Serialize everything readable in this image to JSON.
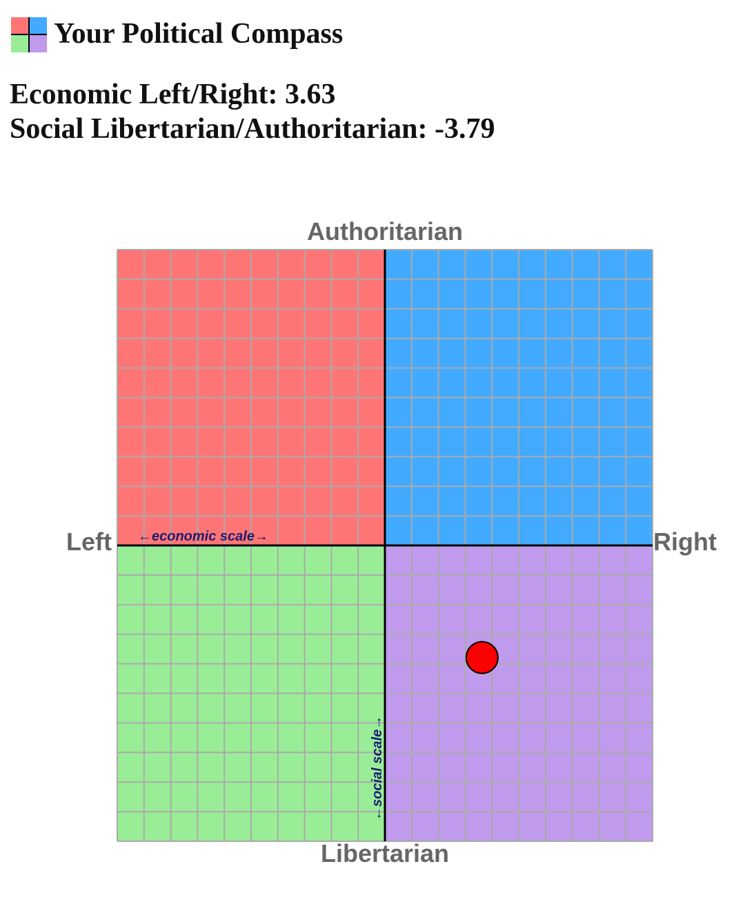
{
  "chart_data": {
    "type": "scatter",
    "title": "Your Political Compass",
    "readout_labels": [
      "Economic Left/Right:",
      "Social Libertarian/Authoritarian:"
    ],
    "x": [
      3.63
    ],
    "y": [
      -3.79
    ],
    "color": "#ff0000",
    "xlim": [
      -10,
      10
    ],
    "ylim": [
      -10,
      10
    ],
    "xticks": [
      -10,
      -9,
      -8,
      -7,
      -6,
      -5,
      -4,
      -3,
      -2,
      -1,
      0,
      1,
      2,
      3,
      4,
      5,
      6,
      7,
      8,
      9,
      10
    ],
    "yticks": [
      -10,
      -9,
      -8,
      -7,
      -6,
      -5,
      -4,
      -3,
      -2,
      -1,
      0,
      1,
      2,
      3,
      4,
      5,
      6,
      7,
      8,
      9,
      10
    ],
    "grid": true,
    "top_label": "Authoritarian",
    "bottom_label": "Libertarian",
    "left_label": "Left",
    "right_label": "Right",
    "x_scale_note": "←economic scale→",
    "y_scale_note": "←social scale→"
  }
}
